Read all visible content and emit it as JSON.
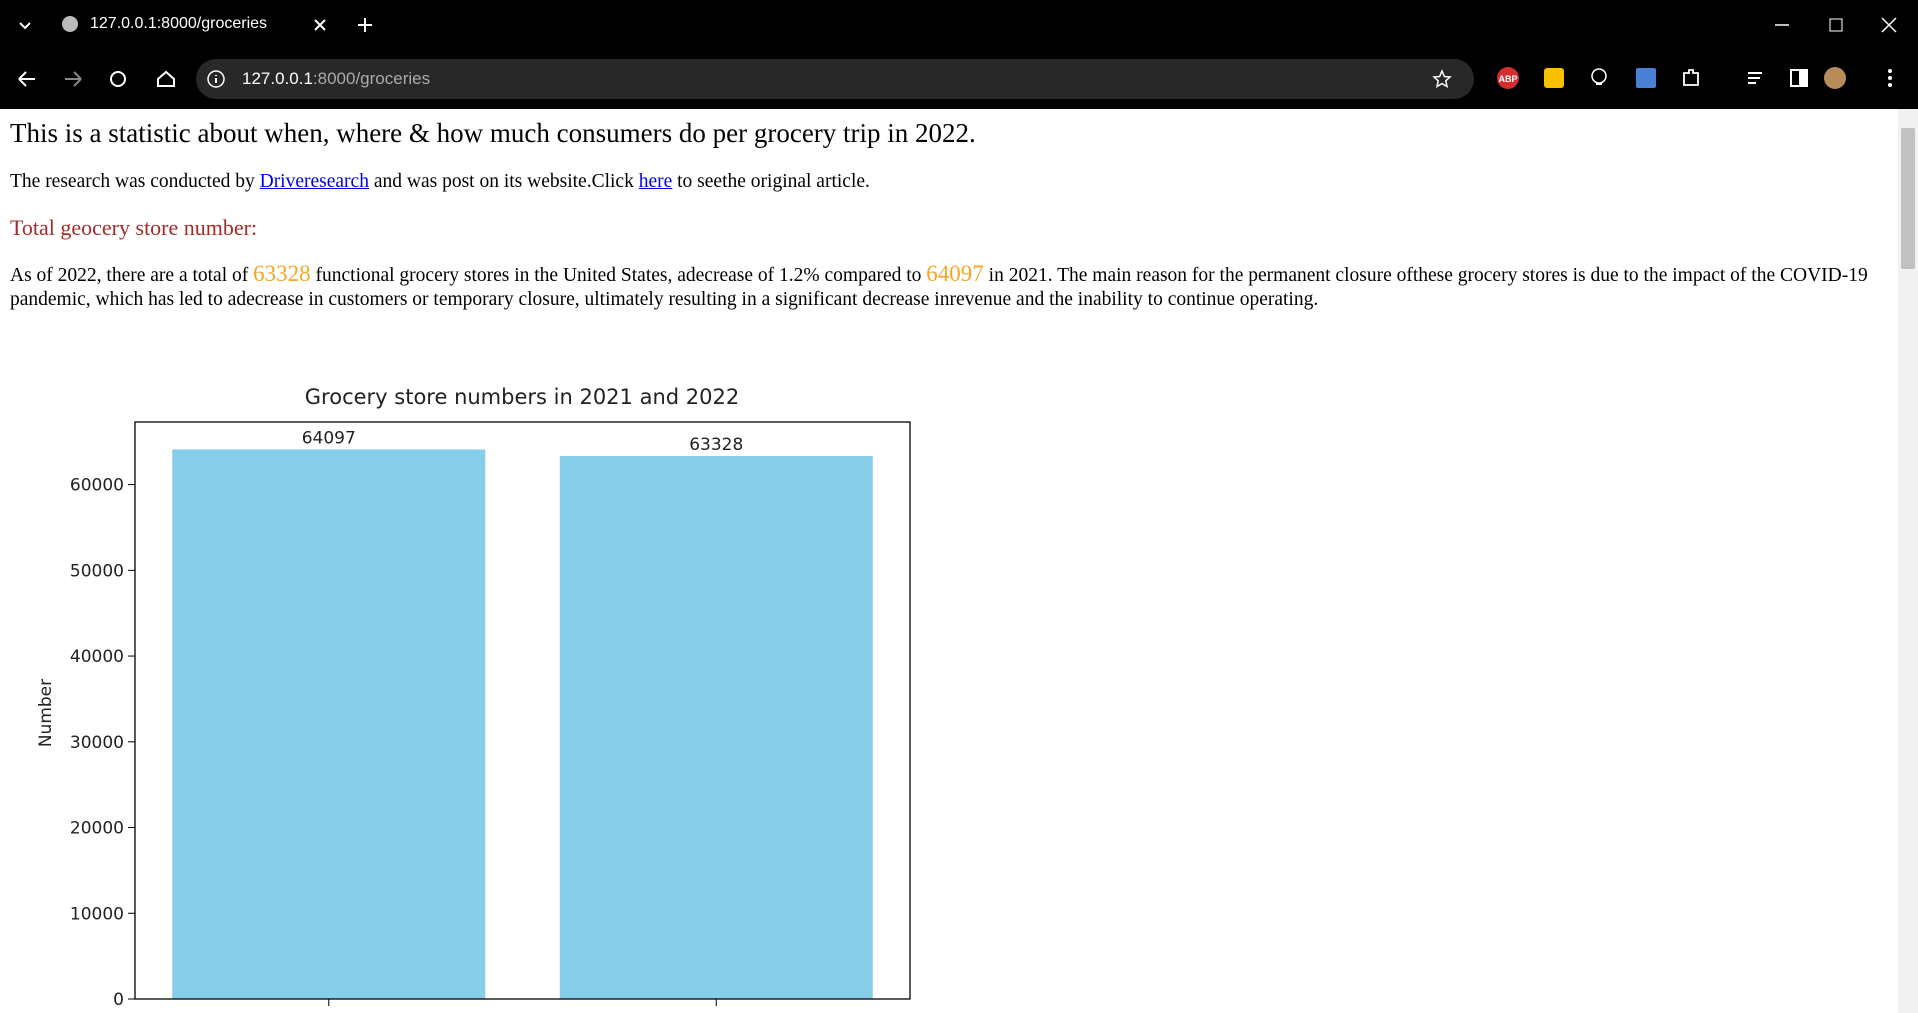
{
  "browser": {
    "tab_title": "127.0.0.1:8000/groceries",
    "address": {
      "host": "127.0.0.1",
      "path": ":8000/groceries"
    },
    "extension_badge": "ABP"
  },
  "content": {
    "heading": "This is a statistic about when, where & how much consumers do per grocery trip in 2022.",
    "intro": {
      "before": "The research was conducted by ",
      "link1": "Driveresearch",
      "middle": " and was post on its website.Click ",
      "link2": "here",
      "after": " to seethe original article."
    },
    "section_title": "Total geocery store number:",
    "paragraph": {
      "part1": "As of 2022, there are a total of ",
      "number1": "63328",
      "part2": " functional grocery stores in the United States, adecrease of 1.2% compared to ",
      "number2": "64097",
      "part3": " in 2021. The main reason for the permanent closure ofthese grocery stores is due to the impact of the COVID-19 pandemic, which has led to adecrease in customers or temporary closure, ultimately resulting in a significant decrease inrevenue and the inability to continue operating."
    }
  },
  "chart_data": {
    "type": "bar",
    "title": "Grocery store numbers in 2021 and 2022",
    "y_label": "Number",
    "categories": [
      null,
      null
    ],
    "values": [
      64097,
      63328
    ],
    "color": "#87ceeb",
    "ylim": [
      0,
      67300
    ],
    "yticks": [
      0,
      10000,
      20000,
      30000,
      40000,
      50000,
      60000
    ]
  }
}
